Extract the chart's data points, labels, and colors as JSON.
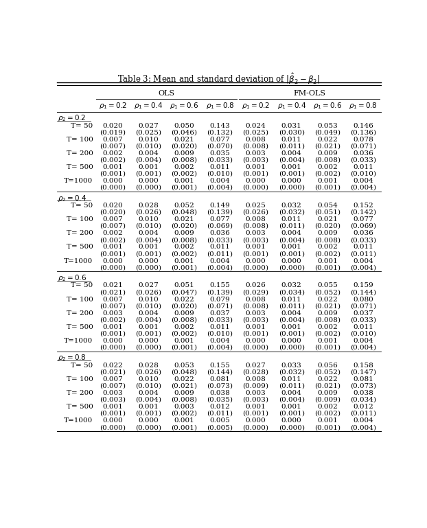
{
  "title": "Table 3: Mean and standard deviation of $|\\hat{\\beta}_2 - \\beta_2|$",
  "col_groups": [
    "OLS",
    "FM-OLS"
  ],
  "col_header_vals": [
    "0.2",
    "0.4",
    "0.6",
    "0.8",
    "0.2",
    "0.4",
    "0.6",
    "0.8"
  ],
  "row_groups": [
    {
      "label_val": "0.2",
      "rows": [
        {
          "T": "T= 50",
          "means": [
            "0.020",
            "0.027",
            "0.050",
            "0.143",
            "0.024",
            "0.031",
            "0.053",
            "0.146"
          ],
          "stds": [
            "(0.019)",
            "(0.025)",
            "(0.046)",
            "(0.132)",
            "(0.025)",
            "(0.030)",
            "(0.049)",
            "(0.136)"
          ]
        },
        {
          "T": "T= 100",
          "means": [
            "0.007",
            "0.010",
            "0.021",
            "0.077",
            "0.008",
            "0.011",
            "0.022",
            "0.078"
          ],
          "stds": [
            "(0.007)",
            "(0.010)",
            "(0.020)",
            "(0.070)",
            "(0.008)",
            "(0.011)",
            "(0.021)",
            "(0.071)"
          ]
        },
        {
          "T": "T= 200",
          "means": [
            "0.002",
            "0.004",
            "0.009",
            "0.035",
            "0.003",
            "0.004",
            "0.009",
            "0.036"
          ],
          "stds": [
            "(0.002)",
            "(0.004)",
            "(0.008)",
            "(0.033)",
            "(0.003)",
            "(0.004)",
            "(0.008)",
            "(0.033)"
          ]
        },
        {
          "T": "T= 500",
          "means": [
            "0.001",
            "0.001",
            "0.002",
            "0.011",
            "0.001",
            "0.001",
            "0.002",
            "0.011"
          ],
          "stds": [
            "(0.001)",
            "(0.001)",
            "(0.002)",
            "(0.010)",
            "(0.001)",
            "(0.001)",
            "(0.002)",
            "(0.010)"
          ]
        },
        {
          "T": "T=1000",
          "means": [
            "0.000",
            "0.000",
            "0.001",
            "0.004",
            "0.000",
            "0.000",
            "0.001",
            "0.004"
          ],
          "stds": [
            "(0.000)",
            "(0.000)",
            "(0.001)",
            "(0.004)",
            "(0.000)",
            "(0.000)",
            "(0.001)",
            "(0.004)"
          ]
        }
      ]
    },
    {
      "label_val": "0.4",
      "rows": [
        {
          "T": "T= 50",
          "means": [
            "0.020",
            "0.028",
            "0.052",
            "0.149",
            "0.025",
            "0.032",
            "0.054",
            "0.152"
          ],
          "stds": [
            "(0.020)",
            "(0.026)",
            "(0.048)",
            "(0.139)",
            "(0.026)",
            "(0.032)",
            "(0.051)",
            "(0.142)"
          ]
        },
        {
          "T": "T= 100",
          "means": [
            "0.007",
            "0.010",
            "0.021",
            "0.077",
            "0.008",
            "0.011",
            "0.021",
            "0.077"
          ],
          "stds": [
            "(0.007)",
            "(0.010)",
            "(0.020)",
            "(0.069)",
            "(0.008)",
            "(0.011)",
            "(0.020)",
            "(0.069)"
          ]
        },
        {
          "T": "T= 200",
          "means": [
            "0.002",
            "0.004",
            "0.009",
            "0.036",
            "0.003",
            "0.004",
            "0.009",
            "0.036"
          ],
          "stds": [
            "(0.002)",
            "(0.004)",
            "(0.008)",
            "(0.033)",
            "(0.003)",
            "(0.004)",
            "(0.008)",
            "(0.033)"
          ]
        },
        {
          "T": "T= 500",
          "means": [
            "0.001",
            "0.001",
            "0.002",
            "0.011",
            "0.001",
            "0.001",
            "0.002",
            "0.011"
          ],
          "stds": [
            "(0.001)",
            "(0.001)",
            "(0.002)",
            "(0.011)",
            "(0.001)",
            "(0.001)",
            "(0.002)",
            "(0.011)"
          ]
        },
        {
          "T": "T=1000",
          "means": [
            "0.000",
            "0.000",
            "0.001",
            "0.004",
            "0.000",
            "0.000",
            "0.001",
            "0.004"
          ],
          "stds": [
            "(0.000)",
            "(0.000)",
            "(0.001)",
            "(0.004)",
            "(0.000)",
            "(0.000)",
            "(0.001)",
            "(0.004)"
          ]
        }
      ]
    },
    {
      "label_val": "0.6",
      "rows": [
        {
          "T": "T= 50",
          "means": [
            "0.021",
            "0.027",
            "0.051",
            "0.155",
            "0.026",
            "0.032",
            "0.055",
            "0.159"
          ],
          "stds": [
            "(0.021)",
            "(0.026)",
            "(0.047)",
            "(0.139)",
            "(0.029)",
            "(0.034)",
            "(0.052)",
            "(0.144)"
          ]
        },
        {
          "T": "T= 100",
          "means": [
            "0.007",
            "0.010",
            "0.022",
            "0.079",
            "0.008",
            "0.011",
            "0.022",
            "0.080"
          ],
          "stds": [
            "(0.007)",
            "(0.010)",
            "(0.020)",
            "(0.071)",
            "(0.008)",
            "(0.011)",
            "(0.021)",
            "(0.071)"
          ]
        },
        {
          "T": "T= 200",
          "means": [
            "0.003",
            "0.004",
            "0.009",
            "0.037",
            "0.003",
            "0.004",
            "0.009",
            "0.037"
          ],
          "stds": [
            "(0.002)",
            "(0.004)",
            "(0.008)",
            "(0.033)",
            "(0.003)",
            "(0.004)",
            "(0.008)",
            "(0.033)"
          ]
        },
        {
          "T": "T= 500",
          "means": [
            "0.001",
            "0.001",
            "0.002",
            "0.011",
            "0.001",
            "0.001",
            "0.002",
            "0.011"
          ],
          "stds": [
            "(0.001)",
            "(0.001)",
            "(0.002)",
            "(0.010)",
            "(0.001)",
            "(0.001)",
            "(0.002)",
            "(0.010)"
          ]
        },
        {
          "T": "T=1000",
          "means": [
            "0.000",
            "0.000",
            "0.001",
            "0.004",
            "0.000",
            "0.000",
            "0.001",
            "0.004"
          ],
          "stds": [
            "(0.000)",
            "(0.000)",
            "(0.001)",
            "(0.004)",
            "(0.000)",
            "(0.000)",
            "(0.001)",
            "(0.004)"
          ]
        }
      ]
    },
    {
      "label_val": "0.8",
      "rows": [
        {
          "T": "T= 50",
          "means": [
            "0.022",
            "0.028",
            "0.053",
            "0.155",
            "0.027",
            "0.033",
            "0.056",
            "0.158"
          ],
          "stds": [
            "(0.021)",
            "(0.026)",
            "(0.048)",
            "(0.144)",
            "(0.028)",
            "(0.032)",
            "(0.052)",
            "(0.147)"
          ]
        },
        {
          "T": "T= 100",
          "means": [
            "0.007",
            "0.010",
            "0.022",
            "0.081",
            "0.008",
            "0.011",
            "0.022",
            "0.081"
          ],
          "stds": [
            "(0.007)",
            "(0.010)",
            "(0.021)",
            "(0.073)",
            "(0.009)",
            "(0.011)",
            "(0.021)",
            "(0.073)"
          ]
        },
        {
          "T": "T= 200",
          "means": [
            "0.003",
            "0.004",
            "0.009",
            "0.038",
            "0.003",
            "0.004",
            "0.009",
            "0.038"
          ],
          "stds": [
            "(0.003)",
            "(0.004)",
            "(0.008)",
            "(0.035)",
            "(0.003)",
            "(0.004)",
            "(0.009)",
            "(0.034)"
          ]
        },
        {
          "T": "T= 500",
          "means": [
            "0.001",
            "0.001",
            "0.003",
            "0.012",
            "0.001",
            "0.001",
            "0.002",
            "0.012"
          ],
          "stds": [
            "(0.001)",
            "(0.001)",
            "(0.002)",
            "(0.011)",
            "(0.001)",
            "(0.001)",
            "(0.002)",
            "(0.011)"
          ]
        },
        {
          "T": "T=1000",
          "means": [
            "0.000",
            "0.000",
            "0.001",
            "0.005",
            "0.000",
            "0.000",
            "0.001",
            "0.004"
          ],
          "stds": [
            "(0.000)",
            "(0.000)",
            "(0.001)",
            "(0.005)",
            "(0.000)",
            "(0.000)",
            "(0.001)",
            "(0.004)"
          ]
        }
      ]
    }
  ],
  "bg_color": "#ffffff",
  "text_color": "#000000",
  "font_size": 7.5,
  "title_font_size": 8.5
}
